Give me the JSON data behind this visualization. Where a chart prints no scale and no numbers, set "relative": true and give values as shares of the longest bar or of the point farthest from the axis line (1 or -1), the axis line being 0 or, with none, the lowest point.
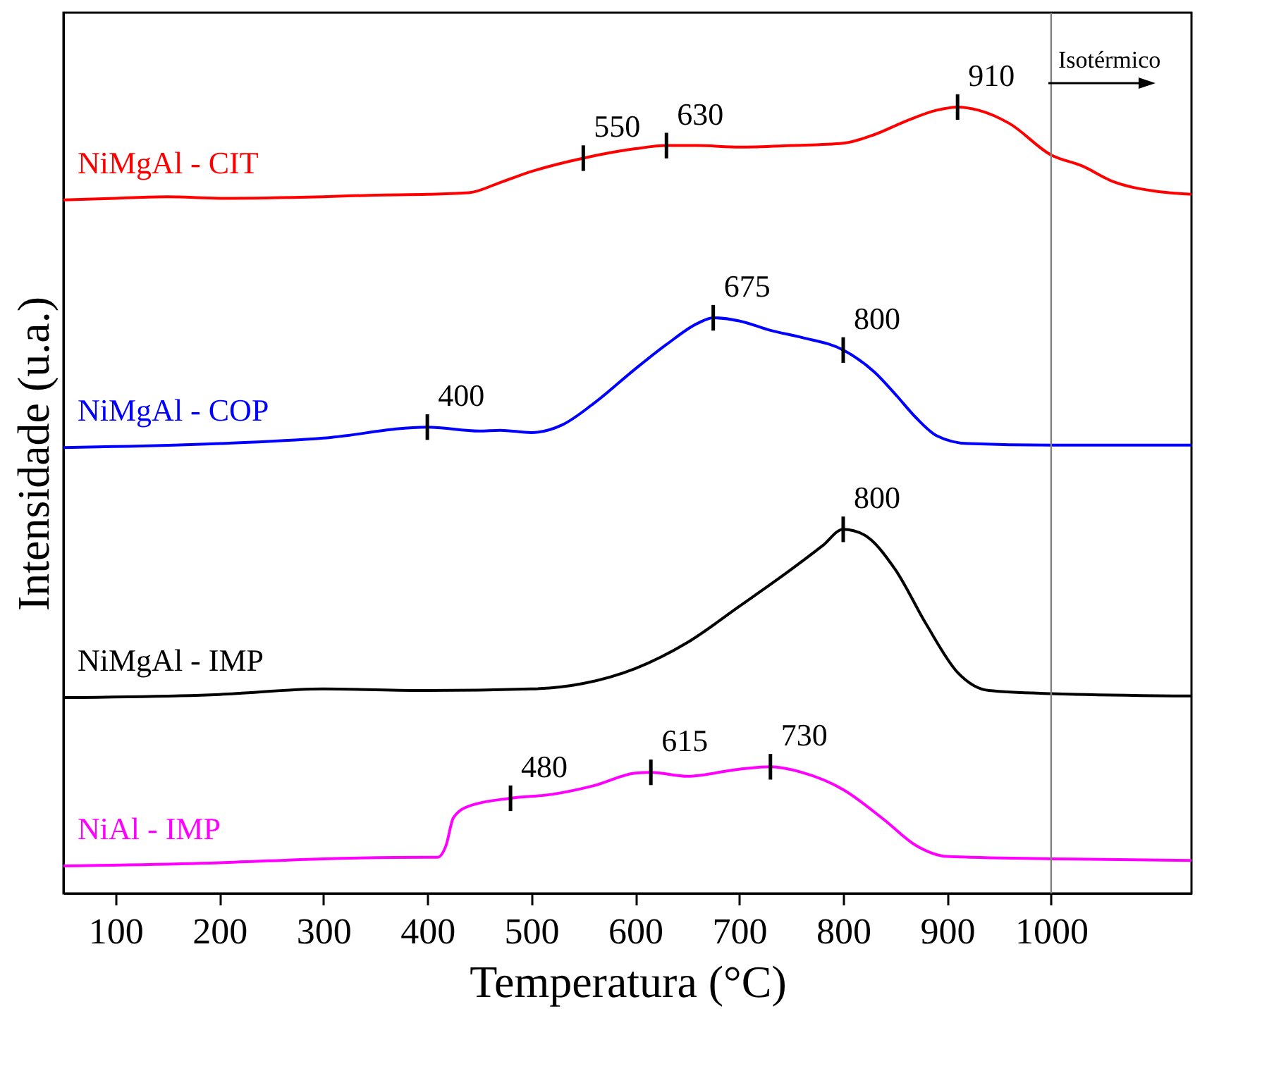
{
  "chart_data": {
    "type": "line",
    "relative": true,
    "xlabel": "Temperatura (°C)",
    "ylabel": "Intensidade (u.a.)",
    "legend": false,
    "xlim": [
      50,
      1135
    ],
    "xticks": [
      100,
      200,
      300,
      400,
      500,
      600,
      700,
      800,
      900,
      1000
    ],
    "ref_lines": [
      {
        "axis": "x",
        "value": 1000,
        "label": "Isotérmico",
        "color": "#808080"
      }
    ],
    "series": [
      {
        "name": "NiMgAl - CIT",
        "color": "#ff0000",
        "x": [
          50,
          100,
          150,
          200,
          300,
          350,
          400,
          440,
          470,
          500,
          550,
          600,
          630,
          660,
          700,
          750,
          800,
          830,
          860,
          890,
          910,
          930,
          960,
          1000,
          1030,
          1060,
          1100,
          1135
        ],
        "values": [
          0.882,
          0.884,
          0.886,
          0.884,
          0.886,
          0.888,
          0.889,
          0.891,
          0.904,
          0.918,
          0.935,
          0.947,
          0.951,
          0.951,
          0.949,
          0.951,
          0.954,
          0.965,
          0.982,
          0.996,
          1,
          0.996,
          0.979,
          0.939,
          0.925,
          0.905,
          0.893,
          0.889
        ]
      },
      {
        "name": "NiMgAl - COP",
        "color": "#0000ff",
        "x": [
          50,
          200,
          300,
          400,
          450,
          470,
          500,
          530,
          560,
          600,
          630,
          660,
          675,
          700,
          730,
          760,
          800,
          830,
          850,
          870,
          890,
          920,
          1000,
          1135
        ],
        "values": [
          0.567,
          0.572,
          0.579,
          0.593,
          0.588,
          0.589,
          0.586,
          0.596,
          0.623,
          0.667,
          0.698,
          0.725,
          0.732,
          0.728,
          0.716,
          0.707,
          0.691,
          0.663,
          0.635,
          0.605,
          0.582,
          0.572,
          0.57,
          0.57
        ]
      },
      {
        "name": "NiMgAl - IMP",
        "color": "#000000",
        "x": [
          50,
          200,
          300,
          400,
          500,
          550,
          600,
          650,
          700,
          750,
          780,
          800,
          820,
          850,
          880,
          910,
          940,
          1000,
          1135
        ],
        "values": [
          0.249,
          0.253,
          0.26,
          0.258,
          0.26,
          0.267,
          0.286,
          0.319,
          0.365,
          0.412,
          0.442,
          0.463,
          0.456,
          0.412,
          0.342,
          0.281,
          0.258,
          0.254,
          0.251
        ]
      },
      {
        "name": "NiAl - IMP",
        "color": "#ff00ff",
        "x": [
          50,
          200,
          300,
          400,
          410,
          418,
          425,
          440,
          480,
          520,
          560,
          600,
          615,
          650,
          700,
          730,
          760,
          800,
          840,
          870,
          900,
          1000,
          1135
        ],
        "values": [
          0.035,
          0.039,
          0.044,
          0.046,
          0.046,
          0.061,
          0.096,
          0.111,
          0.121,
          0.126,
          0.137,
          0.153,
          0.154,
          0.149,
          0.158,
          0.161,
          0.154,
          0.132,
          0.093,
          0.061,
          0.047,
          0.044,
          0.042
        ]
      }
    ],
    "annotations": [
      {
        "text": "550",
        "x": 550,
        "y": 0.935
      },
      {
        "text": "630",
        "x": 630,
        "y": 0.951
      },
      {
        "text": "910",
        "x": 910,
        "y": 1
      },
      {
        "text": "400",
        "x": 400,
        "y": 0.593
      },
      {
        "text": "675",
        "x": 675,
        "y": 0.732
      },
      {
        "text": "800",
        "x": 800,
        "y": 0.691
      },
      {
        "text": "800",
        "x": 800,
        "y": 0.463
      },
      {
        "text": "480",
        "x": 480,
        "y": 0.121
      },
      {
        "text": "615",
        "x": 615,
        "y": 0.154
      },
      {
        "text": "730",
        "x": 730,
        "y": 0.161
      }
    ]
  }
}
